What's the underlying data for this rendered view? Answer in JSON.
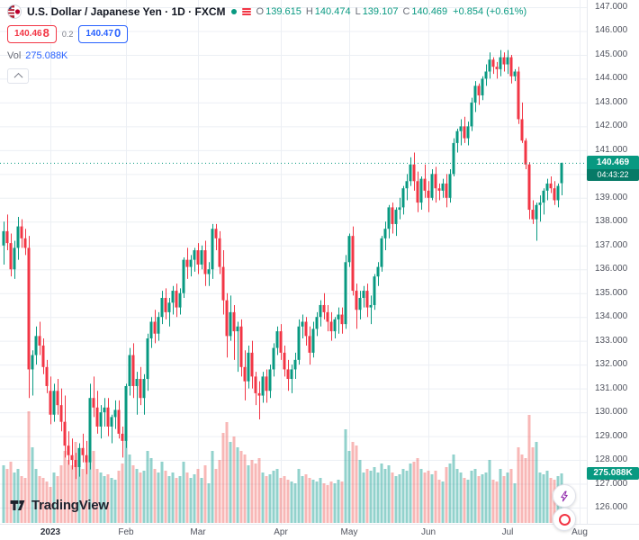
{
  "header": {
    "symbol_title": "U.S. Dollar / Japanese Yen · 1D · FXCM",
    "ohlc": {
      "o_label": "O",
      "o": "139.615",
      "h_label": "H",
      "h": "140.474",
      "l_label": "L",
      "l": "139.107",
      "c_label": "C",
      "c": "140.469",
      "change": "+0.854 (+0.61%)"
    },
    "sell": {
      "main": "140.46",
      "pip": "8"
    },
    "spread": "0.2",
    "buy": {
      "main": "140.47",
      "pip": "0"
    },
    "vol_label": "Vol",
    "vol_value": "275.088K"
  },
  "badges": {
    "price": "140.469",
    "countdown": "04:43:22",
    "volume": "275.088K"
  },
  "footer": {
    "logo_text": "TradingView"
  },
  "colors_ui": {
    "up": "#089981",
    "down": "#f23645",
    "buy_blue": "#2962ff",
    "axis_text": "#50535e"
  },
  "chart_data": {
    "type": "candlestick",
    "title": "U.S. Dollar / Japanese Yen",
    "exchange": "FXCM",
    "interval": "1D",
    "current_price": 140.469,
    "price_line": 140.469,
    "current_volume": 275.088,
    "ylim": [
      126,
      147
    ],
    "y_ticks": [
      126,
      127,
      128,
      129,
      130,
      131,
      132,
      133,
      134,
      135,
      136,
      137,
      138,
      139,
      140,
      141,
      142,
      143,
      144,
      145,
      146,
      147
    ],
    "x_ticks": [
      {
        "label": "2023",
        "i": 13,
        "emph": true
      },
      {
        "label": "Feb",
        "i": 34
      },
      {
        "label": "Mar",
        "i": 54
      },
      {
        "label": "Apr",
        "i": 77
      },
      {
        "label": "May",
        "i": 96
      },
      {
        "label": "Jun",
        "i": 118
      },
      {
        "label": "Jul",
        "i": 140
      },
      {
        "label": "Aug",
        "i": 160
      }
    ],
    "colors": {
      "up": "#089981",
      "down": "#f23645",
      "vol_up": "rgba(38,166,154,0.5)",
      "vol_down": "rgba(239,83,80,0.42)",
      "grid": "#eceff4"
    },
    "candles_format": [
      "open",
      "high",
      "low",
      "close",
      "volume_K"
    ],
    "candles": [
      [
        137.0,
        138.0,
        136.2,
        137.6,
        320
      ],
      [
        137.6,
        138.3,
        136.8,
        137.1,
        300
      ],
      [
        137.1,
        137.5,
        135.7,
        136.0,
        340
      ],
      [
        136.0,
        137.2,
        135.6,
        136.9,
        280
      ],
      [
        136.9,
        138.2,
        136.4,
        137.8,
        300
      ],
      [
        137.8,
        138.1,
        136.9,
        137.3,
        260
      ],
      [
        137.3,
        137.7,
        136.6,
        136.9,
        250
      ],
      [
        136.9,
        137.4,
        130.6,
        131.8,
        620
      ],
      [
        131.8,
        132.6,
        130.7,
        132.4,
        420
      ],
      [
        132.4,
        133.6,
        132.0,
        133.2,
        300
      ],
      [
        133.2,
        133.8,
        132.4,
        132.8,
        260
      ],
      [
        132.8,
        133.1,
        131.6,
        131.9,
        250
      ],
      [
        131.9,
        132.2,
        130.8,
        131.1,
        230
      ],
      [
        130.9,
        131.5,
        129.5,
        129.9,
        200
      ],
      [
        129.9,
        131.2,
        129.6,
        130.9,
        280
      ],
      [
        130.9,
        131.4,
        129.9,
        130.3,
        260
      ],
      [
        130.3,
        131.0,
        129.2,
        129.6,
        320
      ],
      [
        129.6,
        130.7,
        128.1,
        128.6,
        400
      ],
      [
        128.6,
        129.2,
        127.8,
        128.2,
        350
      ],
      [
        128.2,
        128.9,
        127.6,
        128.0,
        320
      ],
      [
        128.0,
        128.3,
        127.2,
        127.7,
        450
      ],
      [
        127.7,
        128.7,
        127.3,
        128.5,
        380
      ],
      [
        128.5,
        129.1,
        127.9,
        128.2,
        300
      ],
      [
        128.2,
        128.8,
        127.4,
        127.9,
        340
      ],
      [
        127.9,
        131.2,
        127.6,
        130.6,
        550
      ],
      [
        130.6,
        131.5,
        129.8,
        130.2,
        400
      ],
      [
        130.2,
        130.9,
        129.1,
        129.4,
        300
      ],
      [
        129.4,
        130.3,
        128.9,
        130.0,
        280
      ],
      [
        130.0,
        130.6,
        129.4,
        130.2,
        260
      ],
      [
        130.2,
        130.6,
        129.0,
        129.4,
        270
      ],
      [
        129.4,
        129.9,
        128.7,
        129.8,
        250
      ],
      [
        129.8,
        130.5,
        129.3,
        130.1,
        240
      ],
      [
        130.1,
        130.5,
        128.9,
        129.1,
        290
      ],
      [
        129.1,
        129.4,
        128.1,
        128.8,
        330
      ],
      [
        128.8,
        131.2,
        128.5,
        131.1,
        480
      ],
      [
        131.1,
        132.7,
        130.7,
        132.4,
        380
      ],
      [
        132.4,
        132.9,
        130.6,
        131.1,
        320
      ],
      [
        131.1,
        131.7,
        129.9,
        131.4,
        300
      ],
      [
        131.4,
        131.9,
        130.3,
        130.6,
        280
      ],
      [
        130.6,
        131.6,
        129.9,
        131.4,
        290
      ],
      [
        131.4,
        133.3,
        130.9,
        133.1,
        400
      ],
      [
        133.1,
        134.0,
        132.7,
        133.8,
        360
      ],
      [
        133.8,
        134.3,
        132.9,
        133.3,
        300
      ],
      [
        133.3,
        134.2,
        133.0,
        134.0,
        280
      ],
      [
        134.0,
        135.1,
        133.7,
        134.8,
        340
      ],
      [
        134.8,
        135.2,
        133.9,
        134.2,
        290
      ],
      [
        134.2,
        134.8,
        133.6,
        134.6,
        260
      ],
      [
        134.6,
        135.3,
        134.1,
        135.1,
        280
      ],
      [
        135.1,
        135.4,
        134.0,
        134.4,
        250
      ],
      [
        134.4,
        135.2,
        134.1,
        135.0,
        260
      ],
      [
        135.0,
        136.5,
        134.8,
        136.4,
        340
      ],
      [
        136.4,
        136.9,
        135.6,
        136.1,
        280
      ],
      [
        136.1,
        136.6,
        135.7,
        136.4,
        250
      ],
      [
        136.4,
        136.9,
        135.9,
        136.8,
        270
      ],
      [
        136.8,
        137.1,
        135.8,
        136.2,
        300
      ],
      [
        136.2,
        137.0,
        136.0,
        136.8,
        250
      ],
      [
        136.8,
        137.2,
        135.3,
        135.8,
        320
      ],
      [
        135.8,
        136.3,
        135.3,
        136.0,
        220
      ],
      [
        136.0,
        137.9,
        135.6,
        137.7,
        400
      ],
      [
        137.7,
        137.9,
        136.8,
        137.3,
        300
      ],
      [
        137.3,
        137.6,
        135.8,
        136.1,
        350
      ],
      [
        136.1,
        136.8,
        134.1,
        134.7,
        500
      ],
      [
        134.7,
        135.0,
        132.3,
        133.2,
        560
      ],
      [
        133.2,
        134.9,
        133.0,
        134.2,
        450
      ],
      [
        134.2,
        134.5,
        132.2,
        133.4,
        480
      ],
      [
        133.4,
        133.8,
        131.7,
        133.6,
        420
      ],
      [
        133.6,
        133.9,
        131.5,
        131.9,
        400
      ],
      [
        131.9,
        132.6,
        130.5,
        131.3,
        380
      ],
      [
        131.3,
        132.8,
        131.0,
        132.5,
        320
      ],
      [
        132.5,
        133.0,
        131.0,
        131.5,
        350
      ],
      [
        131.5,
        131.7,
        130.3,
        130.8,
        330
      ],
      [
        130.8,
        131.3,
        129.7,
        130.7,
        360
      ],
      [
        130.7,
        131.7,
        130.4,
        131.5,
        280
      ],
      [
        131.5,
        131.8,
        130.4,
        130.9,
        260
      ],
      [
        130.9,
        132.0,
        130.6,
        131.8,
        270
      ],
      [
        131.8,
        132.9,
        131.5,
        132.7,
        290
      ],
      [
        132.7,
        133.6,
        132.4,
        133.4,
        300
      ],
      [
        133.4,
        133.7,
        132.2,
        132.5,
        250
      ],
      [
        132.5,
        132.8,
        131.5,
        131.8,
        260
      ],
      [
        131.8,
        132.2,
        130.9,
        131.4,
        240
      ],
      [
        131.4,
        132.0,
        130.8,
        131.8,
        230
      ],
      [
        131.8,
        132.5,
        131.4,
        132.2,
        220
      ],
      [
        132.2,
        133.9,
        132.0,
        133.6,
        300
      ],
      [
        133.6,
        134.1,
        133.1,
        133.8,
        260
      ],
      [
        133.8,
        134.0,
        132.8,
        133.2,
        270
      ],
      [
        133.2,
        133.6,
        132.0,
        132.5,
        250
      ],
      [
        132.5,
        133.8,
        132.3,
        133.5,
        240
      ],
      [
        133.5,
        134.2,
        133.2,
        134.0,
        230
      ],
      [
        134.0,
        134.7,
        133.6,
        134.5,
        250
      ],
      [
        134.5,
        135.0,
        133.9,
        134.2,
        220
      ],
      [
        134.2,
        134.5,
        133.4,
        133.8,
        210
      ],
      [
        133.8,
        134.2,
        133.0,
        133.4,
        230
      ],
      [
        133.4,
        134.0,
        133.1,
        133.9,
        220
      ],
      [
        133.9,
        134.4,
        133.3,
        134.1,
        240
      ],
      [
        134.1,
        134.4,
        133.3,
        133.7,
        230
      ],
      [
        133.7,
        136.6,
        133.5,
        136.3,
        520
      ],
      [
        136.3,
        137.5,
        136.1,
        137.4,
        400
      ],
      [
        137.4,
        137.8,
        134.9,
        135.1,
        450
      ],
      [
        135.1,
        135.4,
        133.5,
        134.3,
        430
      ],
      [
        134.3,
        135.1,
        133.9,
        134.8,
        350
      ],
      [
        134.8,
        135.3,
        134.4,
        135.1,
        280
      ],
      [
        135.1,
        135.4,
        134.0,
        134.4,
        300
      ],
      [
        134.4,
        134.9,
        133.7,
        134.5,
        290
      ],
      [
        134.5,
        135.8,
        134.3,
        135.7,
        310
      ],
      [
        135.7,
        136.3,
        135.3,
        136.1,
        280
      ],
      [
        136.1,
        137.4,
        135.9,
        137.3,
        330
      ],
      [
        137.3,
        138.0,
        136.8,
        137.7,
        300
      ],
      [
        137.7,
        138.7,
        137.3,
        138.6,
        320
      ],
      [
        138.6,
        138.8,
        137.5,
        137.9,
        280
      ],
      [
        137.9,
        138.6,
        137.4,
        138.5,
        260
      ],
      [
        138.5,
        139.0,
        138.1,
        138.6,
        270
      ],
      [
        138.6,
        139.5,
        138.3,
        139.4,
        300
      ],
      [
        139.4,
        140.0,
        138.9,
        139.7,
        290
      ],
      [
        139.7,
        140.7,
        139.5,
        140.4,
        330
      ],
      [
        140.4,
        140.9,
        139.3,
        139.7,
        340
      ],
      [
        139.7,
        140.1,
        138.4,
        138.8,
        360
      ],
      [
        138.8,
        139.9,
        138.5,
        139.8,
        300
      ],
      [
        139.8,
        140.4,
        139.0,
        139.3,
        280
      ],
      [
        139.3,
        139.7,
        138.4,
        139.0,
        290
      ],
      [
        139.0,
        140.2,
        138.9,
        140.0,
        270
      ],
      [
        140.0,
        140.3,
        138.8,
        139.4,
        290
      ],
      [
        139.4,
        139.6,
        138.9,
        139.3,
        240
      ],
      [
        139.3,
        139.8,
        139.0,
        139.6,
        230
      ],
      [
        139.6,
        140.0,
        138.6,
        139.0,
        310
      ],
      [
        139.0,
        140.2,
        138.8,
        140.0,
        330
      ],
      [
        140.0,
        141.5,
        139.9,
        141.3,
        380
      ],
      [
        141.3,
        141.9,
        140.9,
        141.8,
        300
      ],
      [
        141.8,
        142.3,
        141.2,
        142.0,
        280
      ],
      [
        142.0,
        142.4,
        141.3,
        141.5,
        250
      ],
      [
        141.5,
        142.2,
        141.2,
        142.0,
        240
      ],
      [
        142.0,
        143.2,
        141.8,
        143.0,
        290
      ],
      [
        143.0,
        143.9,
        142.6,
        143.7,
        300
      ],
      [
        143.7,
        143.8,
        142.9,
        143.3,
        260
      ],
      [
        143.3,
        144.1,
        143.1,
        144.0,
        270
      ],
      [
        144.0,
        144.6,
        143.7,
        144.3,
        280
      ],
      [
        144.3,
        145.1,
        144.0,
        144.8,
        350
      ],
      [
        144.8,
        144.9,
        144.2,
        144.5,
        240
      ],
      [
        144.5,
        144.7,
        144.0,
        144.4,
        230
      ],
      [
        144.4,
        145.2,
        144.1,
        144.9,
        300
      ],
      [
        144.9,
        145.1,
        144.3,
        144.6,
        260
      ],
      [
        144.6,
        145.2,
        144.2,
        144.9,
        280
      ],
      [
        144.9,
        145.0,
        143.8,
        144.1,
        300
      ],
      [
        144.1,
        144.4,
        143.9,
        144.3,
        220
      ],
      [
        144.3,
        144.5,
        142.1,
        142.3,
        420
      ],
      [
        142.3,
        143.0,
        141.3,
        141.4,
        380
      ],
      [
        141.4,
        141.5,
        140.2,
        140.4,
        360
      ],
      [
        140.4,
        140.5,
        138.1,
        138.5,
        600
      ],
      [
        138.5,
        138.9,
        137.9,
        138.1,
        420
      ],
      [
        138.1,
        138.8,
        137.2,
        138.7,
        450
      ],
      [
        138.7,
        139.1,
        138.0,
        138.8,
        280
      ],
      [
        138.8,
        139.4,
        138.3,
        139.3,
        270
      ],
      [
        139.3,
        139.8,
        138.9,
        139.6,
        290
      ],
      [
        139.6,
        139.9,
        139.2,
        139.4,
        250
      ],
      [
        139.4,
        139.7,
        138.7,
        138.9,
        240
      ],
      [
        138.9,
        139.6,
        138.6,
        139.5,
        260
      ],
      [
        139.615,
        140.474,
        139.107,
        140.469,
        275
      ]
    ]
  }
}
